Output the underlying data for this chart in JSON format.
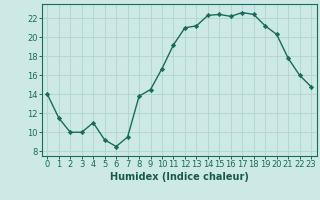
{
  "x": [
    0,
    1,
    2,
    3,
    4,
    5,
    6,
    7,
    8,
    9,
    10,
    11,
    12,
    13,
    14,
    15,
    16,
    17,
    18,
    19,
    20,
    21,
    22,
    23
  ],
  "y": [
    14,
    11.5,
    10,
    10,
    11,
    9.2,
    8.5,
    9.5,
    13.8,
    14.5,
    16.7,
    19.2,
    21.0,
    21.2,
    22.3,
    22.4,
    22.2,
    22.6,
    22.4,
    21.2,
    20.3,
    17.8,
    16.0,
    14.8
  ],
  "line_color": "#1a6b5a",
  "marker": "D",
  "marker_size": 2.2,
  "bg_color": "#cce9e5",
  "grid_color": "#b0d4ce",
  "tick_color": "#1a6b5a",
  "xlabel": "Humidex (Indice chaleur)",
  "xlim": [
    -0.5,
    23.5
  ],
  "ylim": [
    7.5,
    23.5
  ],
  "yticks": [
    8,
    10,
    12,
    14,
    16,
    18,
    20,
    22
  ],
  "xticks": [
    0,
    1,
    2,
    3,
    4,
    5,
    6,
    7,
    8,
    9,
    10,
    11,
    12,
    13,
    14,
    15,
    16,
    17,
    18,
    19,
    20,
    21,
    22,
    23
  ],
  "font_color": "#1a5a4a",
  "font_size": 6.0,
  "xlabel_fontsize": 7.0
}
